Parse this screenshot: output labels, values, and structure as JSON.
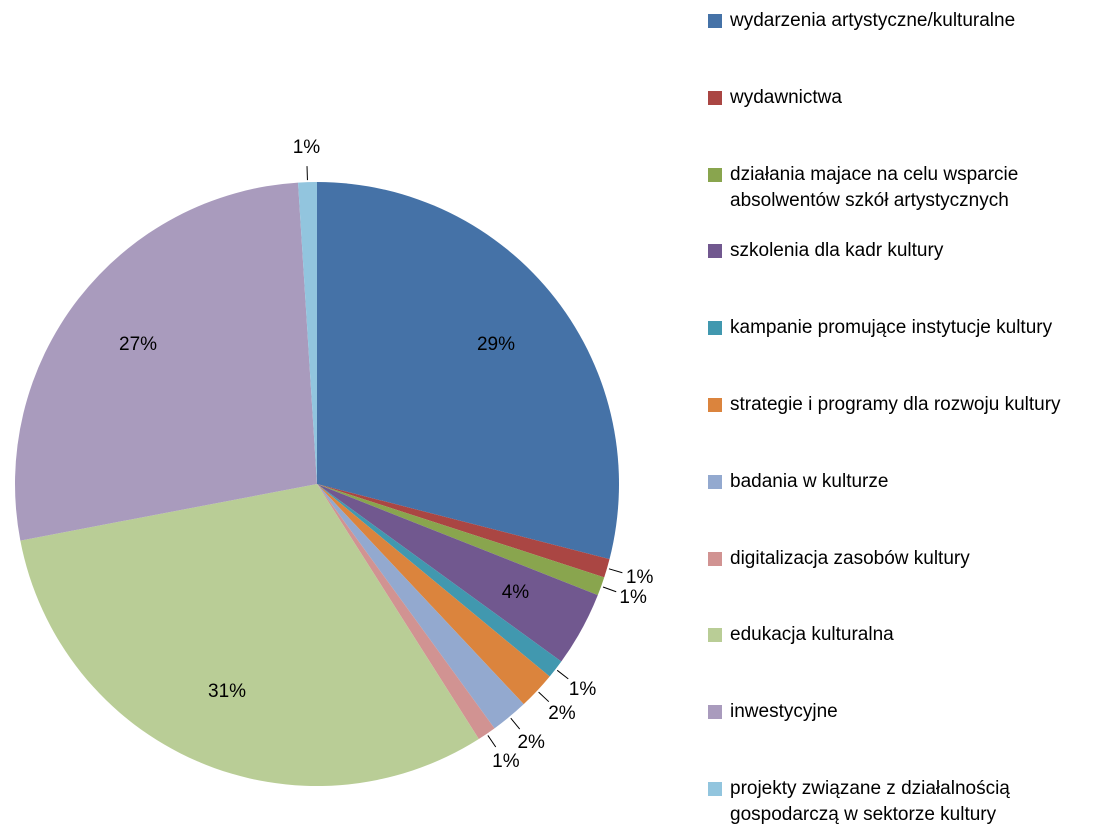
{
  "chart_data": {
    "type": "pie",
    "categories": [
      "wydarzenia artystyczne/kulturalne",
      "wydawnictwa",
      "działania majace na celu wsparcie absolwentów szkół artystycznych",
      "szkolenia dla kadr kultury",
      "kampanie promujące instytucje kultury",
      "strategie i programy dla rozwoju kultury",
      "badania w kulturze",
      "digitalizacja zasobów kultury",
      "edukacja kulturalna",
      "inwestycyjne",
      "projekty związane z działalnością gospodarczą w sektorze kultury"
    ],
    "values": [
      29,
      1,
      1,
      4,
      1,
      2,
      2,
      1,
      31,
      27,
      1
    ],
    "value_labels": [
      "29%",
      "1%",
      "1%",
      "4%",
      "1%",
      "2%",
      "2%",
      "1%",
      "31%",
      "27%",
      "1%"
    ],
    "colors": [
      "#4572a7",
      "#aa4643",
      "#89a54e",
      "#71588f",
      "#4198af",
      "#db843d",
      "#93a9cf",
      "#d19392",
      "#b9cd96",
      "#a99bbd",
      "#92c5de"
    ],
    "legend": "right"
  }
}
